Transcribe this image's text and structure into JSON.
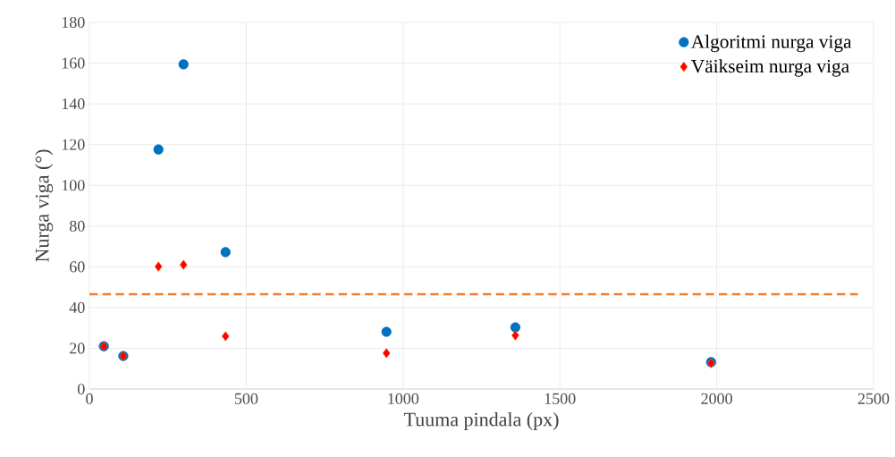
{
  "chart_data": {
    "type": "scatter",
    "xlabel": "Tuuma pindala (px)",
    "ylabel": "Nurga viga (°)",
    "series": [
      {
        "name": "Algoritmi nurga viga",
        "color": "#0070c0",
        "marker": "circle",
        "x": [
          46,
          108,
          220,
          300,
          434,
          947,
          1358,
          1982
        ],
        "values": [
          21,
          16.2,
          117.6,
          159.4,
          67.2,
          28.1,
          30.3,
          13.2
        ]
      },
      {
        "name": "Väikseim nurga viga",
        "color": "#ff0000",
        "marker": "diamond",
        "x": [
          46,
          108,
          220,
          300,
          434,
          947,
          1358,
          1982
        ],
        "values": [
          21,
          16.2,
          60.1,
          61,
          25.9,
          17.6,
          26.3,
          12.7
        ]
      }
    ],
    "ref_lines": [
      {
        "axis": "y",
        "value": 46.5,
        "color": "#ed7d31",
        "line_style": "dashed"
      }
    ],
    "xlim": [
      0,
      2500
    ],
    "ylim": [
      0,
      180
    ],
    "xticks": [
      0,
      500,
      1000,
      1500,
      2000,
      2500
    ],
    "yticks": [
      0,
      20,
      40,
      60,
      80,
      100,
      120,
      140,
      160,
      180
    ],
    "grid": true,
    "legend": "top right"
  }
}
